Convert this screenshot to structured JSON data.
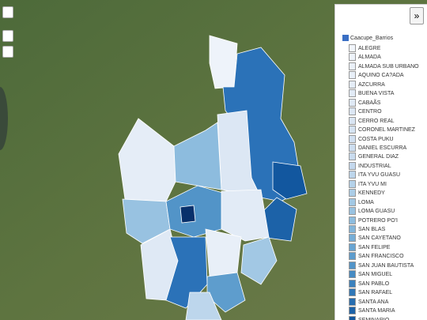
{
  "panel": {
    "toggle": "»",
    "layer": {
      "name": "Caacupe_Barrios",
      "items": [
        {
          "name": "ALEGRE",
          "color": "#f1f5fb"
        },
        {
          "name": "ALMADA",
          "color": "#eef3fa"
        },
        {
          "name": "ALMADA SUB URBANO",
          "color": "#ebf1f9"
        },
        {
          "name": "AQUINO CA?ADA",
          "color": "#e8eff8"
        },
        {
          "name": "AZCURRA",
          "color": "#e5edf7"
        },
        {
          "name": "BUENA VISTA",
          "color": "#e2ebf6"
        },
        {
          "name": "CABAÃS",
          "color": "#dfe9f5"
        },
        {
          "name": "CENTRO",
          "color": "#dce7f4"
        },
        {
          "name": "CERRO REAL",
          "color": "#d9e5f3"
        },
        {
          "name": "CORONEL MARTINEZ",
          "color": "#d5e3f2"
        },
        {
          "name": "COSTA PUKU",
          "color": "#d1e0f1"
        },
        {
          "name": "DANIEL ESCURRA",
          "color": "#cddef0"
        },
        {
          "name": "GENERAL DIAZ",
          "color": "#c9dbee"
        },
        {
          "name": "INDUSTRIAL",
          "color": "#c4d8ed"
        },
        {
          "name": "ITA YVU GUASU",
          "color": "#bdd6ec"
        },
        {
          "name": "ITA YVU MI",
          "color": "#b5d2ea"
        },
        {
          "name": "KENNEDY",
          "color": "#abcde7"
        },
        {
          "name": "LOMA",
          "color": "#a2c8e4"
        },
        {
          "name": "LOMA GUASU",
          "color": "#98c2e1"
        },
        {
          "name": "POTRERO PO'I",
          "color": "#8dbcde"
        },
        {
          "name": "SAN BLAS",
          "color": "#82b5da"
        },
        {
          "name": "SAN CAYETANO",
          "color": "#76add6"
        },
        {
          "name": "SAN FELIPE",
          "color": "#6aa5d2"
        },
        {
          "name": "SAN FRANCISCO",
          "color": "#5e9dcd"
        },
        {
          "name": "SAN JUAN BAUTISTA",
          "color": "#5294c8"
        },
        {
          "name": "SAN MIGUEL",
          "color": "#468bc3"
        },
        {
          "name": "SAN PABLO",
          "color": "#3b81bd"
        },
        {
          "name": "SAN RAFAEL",
          "color": "#3077b7"
        },
        {
          "name": "SANTA ANA",
          "color": "#266db0"
        },
        {
          "name": "SANTA MARIA",
          "color": "#1c62a8"
        },
        {
          "name": "SEMINARIO",
          "color": "#12579f"
        }
      ]
    }
  }
}
